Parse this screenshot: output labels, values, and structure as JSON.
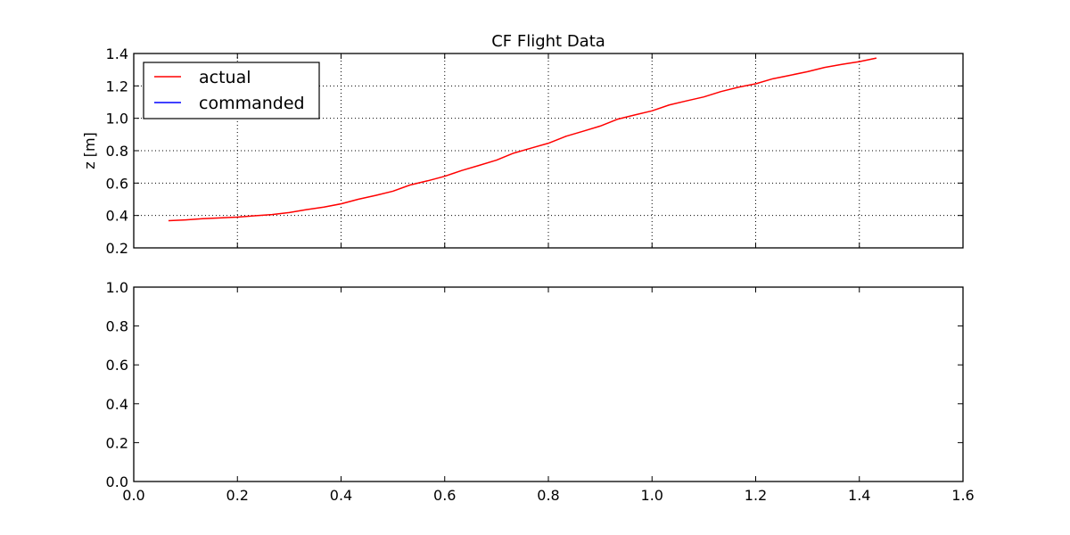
{
  "chart_data": [
    {
      "type": "line",
      "title": "CF Flight Data",
      "xlabel": "",
      "ylabel": "z [m]",
      "xlim": [
        0.0,
        1.6
      ],
      "ylim": [
        0.2,
        1.4
      ],
      "grid": true,
      "legend": "top-left",
      "x_ticks": [
        "0.0",
        "0.2",
        "0.4",
        "0.6",
        "0.8",
        "1.0",
        "1.2",
        "1.4",
        "1.6"
      ],
      "x_ticks_shown": false,
      "y_ticks": [
        "0.2",
        "0.4",
        "0.6",
        "0.8",
        "1.0",
        "1.2",
        "1.4"
      ],
      "series": [
        {
          "name": "actual",
          "color": "#ff0000",
          "x": [
            0.067,
            0.1,
            0.133,
            0.167,
            0.2,
            0.233,
            0.267,
            0.3,
            0.333,
            0.367,
            0.4,
            0.433,
            0.467,
            0.5,
            0.533,
            0.567,
            0.6,
            0.633,
            0.667,
            0.7,
            0.733,
            0.767,
            0.8,
            0.833,
            0.867,
            0.9,
            0.933,
            0.967,
            1.0,
            1.033,
            1.067,
            1.1,
            1.133,
            1.167,
            1.2,
            1.233,
            1.267,
            1.3,
            1.333,
            1.367,
            1.4,
            1.433
          ],
          "y": [
            0.368,
            0.373,
            0.38,
            0.385,
            0.39,
            0.398,
            0.406,
            0.418,
            0.436,
            0.452,
            0.472,
            0.5,
            0.524,
            0.55,
            0.588,
            0.614,
            0.642,
            0.678,
            0.71,
            0.742,
            0.785,
            0.816,
            0.846,
            0.888,
            0.92,
            0.952,
            0.994,
            1.021,
            1.046,
            1.082,
            1.108,
            1.132,
            1.165,
            1.192,
            1.213,
            1.244,
            1.266,
            1.288,
            1.314,
            1.333,
            1.35,
            1.372
          ]
        },
        {
          "name": "commanded",
          "color": "#0000ff",
          "x": [],
          "y": []
        }
      ]
    },
    {
      "type": "line",
      "title": "",
      "xlabel": "",
      "ylabel": "",
      "xlim": [
        0.0,
        1.6
      ],
      "ylim": [
        0.0,
        1.0
      ],
      "grid": false,
      "x_ticks": [
        "0.0",
        "0.2",
        "0.4",
        "0.6",
        "0.8",
        "1.0",
        "1.2",
        "1.4",
        "1.6"
      ],
      "x_ticks_shown": true,
      "y_ticks": [
        "0.0",
        "0.2",
        "0.4",
        "0.6",
        "0.8",
        "1.0"
      ],
      "series": []
    }
  ]
}
